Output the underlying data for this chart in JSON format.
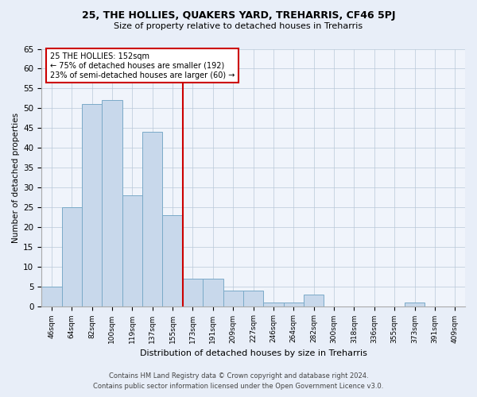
{
  "title1": "25, THE HOLLIES, QUAKERS YARD, TREHARRIS, CF46 5PJ",
  "title2": "Size of property relative to detached houses in Treharris",
  "xlabel": "Distribution of detached houses by size in Treharris",
  "ylabel": "Number of detached properties",
  "categories": [
    "46sqm",
    "64sqm",
    "82sqm",
    "100sqm",
    "119sqm",
    "137sqm",
    "155sqm",
    "173sqm",
    "191sqm",
    "209sqm",
    "227sqm",
    "246sqm",
    "264sqm",
    "282sqm",
    "300sqm",
    "318sqm",
    "336sqm",
    "355sqm",
    "373sqm",
    "391sqm",
    "409sqm"
  ],
  "values": [
    5,
    25,
    51,
    52,
    28,
    44,
    23,
    7,
    7,
    4,
    4,
    1,
    1,
    3,
    0,
    0,
    0,
    0,
    1,
    0,
    0
  ],
  "bar_color": "#c8d8eb",
  "bar_edge_color": "#7aaac8",
  "highlight_line_label": "25 THE HOLLIES: 152sqm",
  "annotation_line1": "← 75% of detached houses are smaller (192)",
  "annotation_line2": "23% of semi-detached houses are larger (60) →",
  "annotation_box_color": "#ffffff",
  "annotation_box_edge": "#cc0000",
  "vline_color": "#cc0000",
  "vline_x_index": 6.5,
  "ylim": [
    0,
    65
  ],
  "yticks": [
    0,
    5,
    10,
    15,
    20,
    25,
    30,
    35,
    40,
    45,
    50,
    55,
    60,
    65
  ],
  "bg_color": "#e8eef8",
  "plot_bg_color": "#f0f4fb",
  "footer1": "Contains HM Land Registry data © Crown copyright and database right 2024.",
  "footer2": "Contains public sector information licensed under the Open Government Licence v3.0."
}
